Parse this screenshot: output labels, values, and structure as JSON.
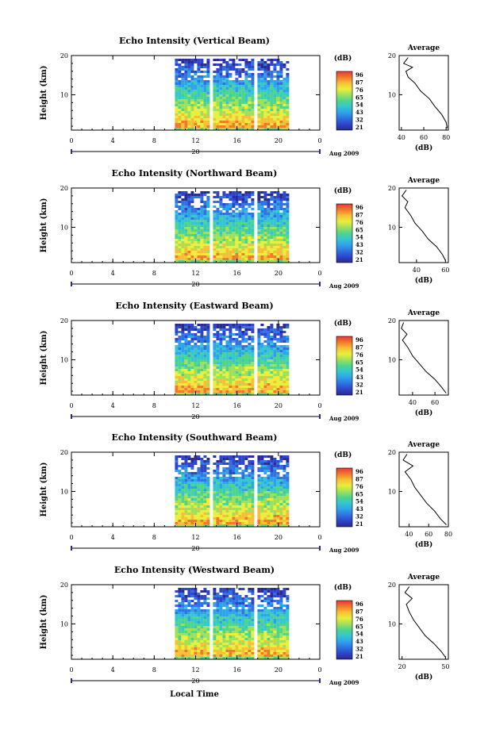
{
  "figure": {
    "xlabel": "Local Time",
    "date_label": "Aug 2009",
    "date_day": "20"
  },
  "colorbar": {
    "unit": "(dB)",
    "ticks": [
      "96",
      "87",
      "76",
      "65",
      "54",
      "43",
      "32",
      "21"
    ],
    "colors": [
      "#e8363a",
      "#f07a2a",
      "#f6c036",
      "#e9ef3a",
      "#9fe05a",
      "#4fd48d",
      "#35c6cf",
      "#2fa3ea",
      "#2f72e0",
      "#2e45c9",
      "#2a2a8f"
    ]
  },
  "chart_data": [
    {
      "type": "heatmap",
      "title": "Echo Intensity (Vertical Beam)",
      "ylabel": "Height (km)",
      "xlim": [
        0,
        24
      ],
      "ylim": [
        1,
        20
      ],
      "xticks": [
        "0",
        "4",
        "8",
        "12",
        "16",
        "20",
        "0"
      ],
      "yticks": [
        "10",
        "20"
      ],
      "data_x_range": [
        10,
        21
      ],
      "gap_hours": [
        13.3,
        17.7
      ],
      "avg": {
        "title": "Average",
        "xlabel": "(dB)",
        "xticks": [
          "40",
          "60",
          "80"
        ],
        "xlim": [
          38,
          82
        ],
        "profile": [
          [
            81,
            1.5
          ],
          [
            80,
            3
          ],
          [
            76,
            5
          ],
          [
            70,
            7
          ],
          [
            65,
            9
          ],
          [
            57,
            11
          ],
          [
            52,
            13
          ],
          [
            46,
            14.5
          ],
          [
            44,
            16
          ],
          [
            50,
            17
          ],
          [
            42,
            18
          ],
          [
            46,
            19.5
          ]
        ]
      }
    },
    {
      "type": "heatmap",
      "title": "Echo Intensity (Northward Beam)",
      "ylabel": "Height (km)",
      "xlim": [
        0,
        24
      ],
      "ylim": [
        1,
        20
      ],
      "xticks": [
        "0",
        "4",
        "8",
        "12",
        "16",
        "20",
        "0"
      ],
      "yticks": [
        "10",
        "20"
      ],
      "data_x_range": [
        10,
        21
      ],
      "gap_hours": [
        13.3,
        17.7
      ],
      "avg": {
        "title": "Average",
        "xlabel": "(dB)",
        "xticks": [
          "40",
          "60"
        ],
        "xlim": [
          28,
          62
        ],
        "profile": [
          [
            60,
            1.5
          ],
          [
            58,
            3
          ],
          [
            54,
            5
          ],
          [
            48,
            7
          ],
          [
            44,
            9
          ],
          [
            39,
            11
          ],
          [
            36,
            13
          ],
          [
            32,
            15
          ],
          [
            34,
            16.5
          ],
          [
            30,
            18
          ],
          [
            33,
            19.5
          ]
        ]
      }
    },
    {
      "type": "heatmap",
      "title": "Echo Intensity (Eastward Beam)",
      "ylabel": "Height (km)",
      "xlim": [
        0,
        24
      ],
      "ylim": [
        1,
        20
      ],
      "xticks": [
        "0",
        "4",
        "8",
        "12",
        "16",
        "20",
        "0"
      ],
      "yticks": [
        "10",
        "20"
      ],
      "data_x_range": [
        10,
        21
      ],
      "gap_hours": [
        13.3,
        17.7
      ],
      "avg": {
        "title": "Average",
        "xlabel": "(dB)",
        "xticks": [
          "40",
          "60"
        ],
        "xlim": [
          28,
          72
        ],
        "profile": [
          [
            70,
            1.5
          ],
          [
            66,
            3
          ],
          [
            60,
            5
          ],
          [
            52,
            7
          ],
          [
            46,
            9
          ],
          [
            40,
            11
          ],
          [
            36,
            13
          ],
          [
            31,
            15
          ],
          [
            35,
            16.5
          ],
          [
            30,
            18
          ],
          [
            32,
            19.5
          ]
        ]
      }
    },
    {
      "type": "heatmap",
      "title": "Echo Intensity (Southward Beam)",
      "ylabel": "Height (km)",
      "xlim": [
        0,
        24
      ],
      "ylim": [
        1,
        20
      ],
      "xticks": [
        "0",
        "4",
        "8",
        "12",
        "16",
        "20",
        "0"
      ],
      "yticks": [
        "10",
        "20"
      ],
      "data_x_range": [
        10,
        21
      ],
      "gap_hours": [
        13.3,
        17.7
      ],
      "avg": {
        "title": "Average",
        "xlabel": "(dB)",
        "xticks": [
          "40",
          "60",
          "80"
        ],
        "xlim": [
          30,
          80
        ],
        "profile": [
          [
            78,
            1.5
          ],
          [
            72,
            3
          ],
          [
            66,
            5
          ],
          [
            58,
            7
          ],
          [
            52,
            9
          ],
          [
            46,
            11
          ],
          [
            42,
            13
          ],
          [
            36,
            15
          ],
          [
            44,
            16.5
          ],
          [
            34,
            18
          ],
          [
            38,
            19.5
          ]
        ]
      }
    },
    {
      "type": "heatmap",
      "title": "Echo Intensity (Westward Beam)",
      "ylabel": "Height (km)",
      "xlim": [
        0,
        24
      ],
      "ylim": [
        1,
        20
      ],
      "xticks": [
        "0",
        "4",
        "8",
        "12",
        "16",
        "20",
        "0"
      ],
      "yticks": [
        "10",
        "20"
      ],
      "data_x_range": [
        10,
        21
      ],
      "gap_hours": [
        13.3,
        17.7
      ],
      "avg": {
        "title": "Average",
        "xlabel": "(dB)",
        "xticks": [
          "20",
          "50"
        ],
        "xlim": [
          18,
          52
        ],
        "profile": [
          [
            50,
            1.5
          ],
          [
            47,
            3
          ],
          [
            42,
            5
          ],
          [
            36,
            7
          ],
          [
            32,
            9
          ],
          [
            28,
            11
          ],
          [
            25,
            13
          ],
          [
            23,
            15
          ],
          [
            27,
            16.5
          ],
          [
            22,
            18
          ],
          [
            25,
            19.5
          ]
        ]
      }
    }
  ]
}
